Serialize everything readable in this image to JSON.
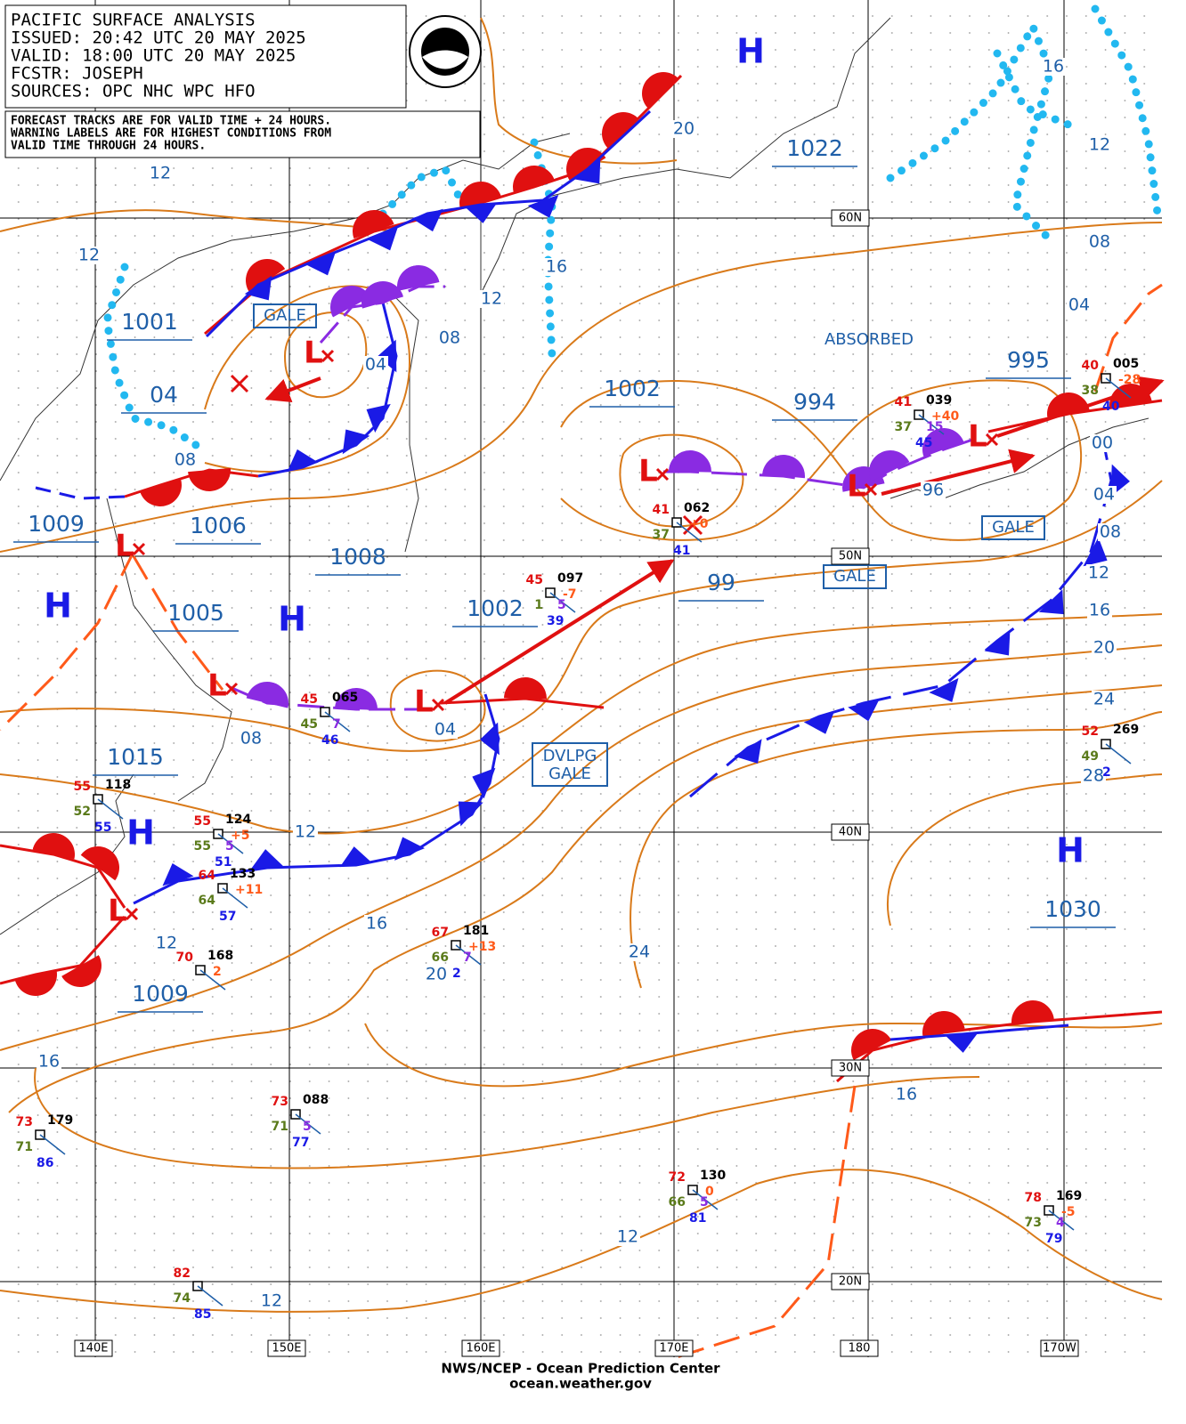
{
  "header": {
    "title": "PACIFIC SURFACE ANALYSIS",
    "issued": "ISSUED: 20:42 UTC 20 MAY 2025",
    "valid": "VALID:  18:00 UTC 20 MAY 2025",
    "forecaster": "FCSTR:  JOSEPH",
    "sources": "SOURCES: OPC NHC WPC HFO",
    "note": [
      "FORECAST TRACKS ARE FOR VALID TIME + 24 HOURS.",
      "WARNING LABELS ARE FOR HIGHEST CONDITIONS FROM",
      "VALID TIME THROUGH 24 HOURS."
    ]
  },
  "symbols": {
    "high": "H",
    "low": "L"
  },
  "center_pressures": [
    "1022",
    "1001",
    "04",
    "1009",
    "1006",
    "1008",
    "1005",
    "1002",
    "994",
    "995",
    "99",
    "1002",
    "1015",
    "1030",
    "1009"
  ],
  "isobar_labels": [
    "20",
    "12",
    "12",
    "16",
    "12",
    "08",
    "04",
    "08",
    "04",
    "08",
    "16",
    "12",
    "96",
    "00",
    "04",
    "08",
    "12",
    "16",
    "20",
    "24",
    "28",
    "08",
    "04",
    "12",
    "16",
    "12",
    "24",
    "20",
    "16",
    "16",
    "12",
    "12"
  ],
  "warnings": [
    "GALE",
    "GALE",
    "GALE",
    "ABSORBED"
  ],
  "developing_gale": [
    "DVLPG",
    "GALE"
  ],
  "stations": [
    {
      "air_temp": "55",
      "pressure": "118",
      "dew_point": "52",
      "water_temp": "55"
    },
    {
      "air_temp": "55",
      "pressure": "124",
      "dew_point": "55",
      "water_temp": "51",
      "cloud": "5",
      "tendency": "+5"
    },
    {
      "air_temp": "64",
      "pressure": "133",
      "dew_point": "64",
      "water_temp": "57",
      "tendency": "+11"
    },
    {
      "air_temp": "45",
      "pressure": "065",
      "dew_point": "45",
      "water_temp": "46",
      "cloud": "7"
    },
    {
      "air_temp": "45",
      "pressure": "097",
      "dew_point": "1",
      "water_temp": "39",
      "cloud": "5",
      "tendency": "-7"
    },
    {
      "air_temp": "67",
      "pressure": "181",
      "dew_point": "66",
      "water_temp": "2",
      "cloud": "7",
      "tendency": "+13"
    },
    {
      "air_temp": "41",
      "pressure": "062",
      "dew_point": "37",
      "water_temp": "41",
      "tendency": "+0"
    },
    {
      "air_temp": "41",
      "pressure": "039",
      "dew_point": "37",
      "water_temp": "45",
      "cloud": "15",
      "tendency": "+40"
    },
    {
      "air_temp": "40",
      "pressure": "005",
      "dew_point": "38",
      "water_temp": "40",
      "tendency": "-28"
    },
    {
      "air_temp": "52",
      "pressure": "269",
      "dew_point": "49",
      "water_temp": "2"
    },
    {
      "air_temp": "70",
      "pressure": "168",
      "tendency": "2"
    },
    {
      "air_temp": "73",
      "pressure": "179",
      "dew_point": "71",
      "water_temp": "86"
    },
    {
      "air_temp": "73",
      "pressure": "088",
      "dew_point": "71",
      "water_temp": "77",
      "cloud": "5"
    },
    {
      "air_temp": "82",
      "dew_point": "74",
      "water_temp": "85"
    },
    {
      "air_temp": "72",
      "pressure": "130",
      "dew_point": "66",
      "water_temp": "81",
      "cloud": "5",
      "tendency": "0"
    },
    {
      "air_temp": "78",
      "pressure": "169",
      "dew_point": "73",
      "water_temp": "79",
      "cloud": "4",
      "tendency": "-5"
    }
  ],
  "grid_labels": [
    "60N",
    "50N",
    "40N",
    "30N",
    "20N",
    "140E",
    "150E",
    "160E",
    "170E",
    "180",
    "170W"
  ],
  "footer": {
    "agency": "NWS/NCEP - Ocean Prediction Center",
    "url": "ocean.weather.gov"
  }
}
